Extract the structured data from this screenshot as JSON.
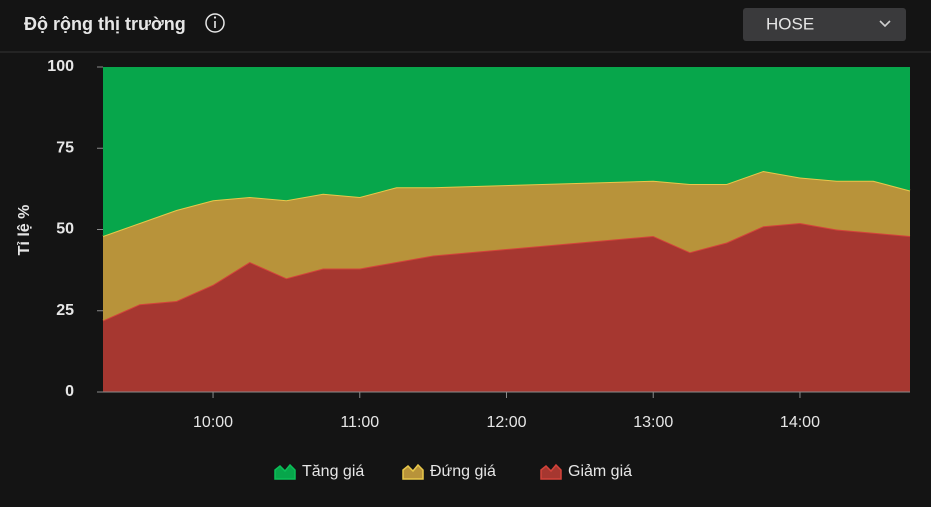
{
  "header": {
    "title": "Độ rộng thị trường"
  },
  "dropdown": {
    "value": "HOSE"
  },
  "chart_data": {
    "type": "area",
    "stacked": true,
    "y_label": "Tỉ lệ %",
    "legend": "bottom",
    "x": [
      "09:15",
      "09:30",
      "09:45",
      "10:00",
      "10:15",
      "10:30",
      "10:45",
      "11:00",
      "11:15",
      "11:30",
      "13:00",
      "13:15",
      "13:30",
      "13:45",
      "14:00",
      "14:15",
      "14:30",
      "14:45"
    ],
    "xlim": [
      "09:15",
      "14:45"
    ],
    "xticks": [
      "10:00",
      "11:00",
      "12:00",
      "13:00",
      "14:00"
    ],
    "ylim": [
      0,
      100
    ],
    "yticks": [
      0,
      25,
      50,
      75,
      100
    ],
    "series": [
      {
        "name": "Tăng giá",
        "color": "#07a64b",
        "values": [
          52,
          48,
          44,
          41,
          40,
          41,
          39,
          40,
          37,
          37,
          35,
          36,
          36,
          32,
          34,
          35,
          35,
          38
        ]
      },
      {
        "name": "Đứng giá",
        "color": "#b8933a",
        "values": [
          26,
          25,
          28,
          26,
          20,
          24,
          23,
          22,
          23,
          21,
          17,
          21,
          18,
          17,
          14,
          15,
          16,
          14
        ]
      },
      {
        "name": "Giảm giá",
        "color": "#a63730",
        "values": [
          22,
          27,
          28,
          33,
          40,
          35,
          38,
          38,
          40,
          42,
          48,
          43,
          46,
          51,
          52,
          50,
          49,
          48
        ]
      }
    ]
  }
}
